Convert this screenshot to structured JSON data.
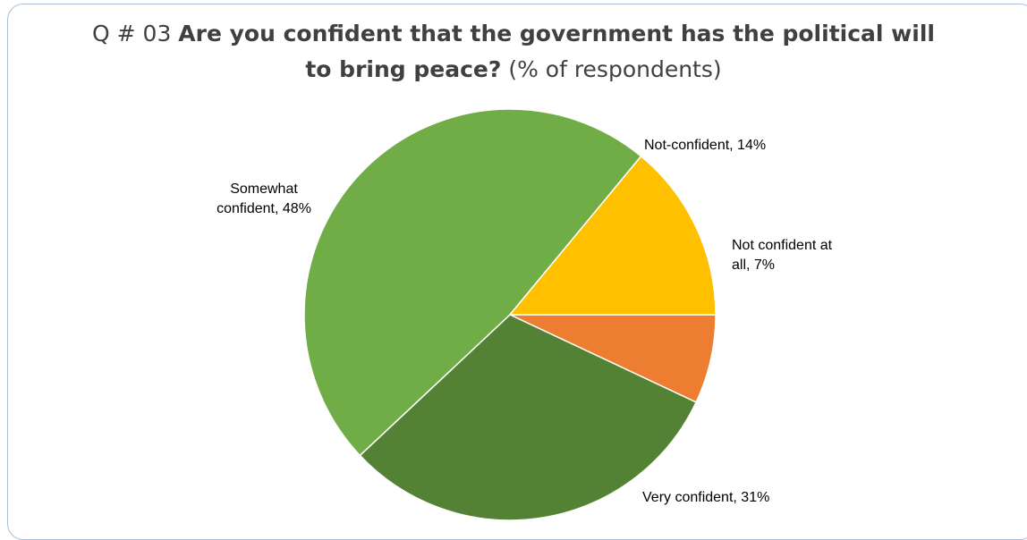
{
  "title": {
    "prefix": "Q # 03 ",
    "bold_line1": "Are you confident that the government has the political will",
    "bold_line2": "to bring peace?",
    "suffix": " (% of respondents)"
  },
  "chart_data": {
    "type": "pie",
    "title": "Q # 03 Are you confident that the government has the political will to bring peace? (% of respondents)",
    "slices": [
      {
        "name": "Not confident at all",
        "value": 7,
        "color": "#ED7D31",
        "label_lines": [
          "Not confident at",
          "all, 7%"
        ]
      },
      {
        "name": "Very confident",
        "value": 31,
        "color": "#548235",
        "label_lines": [
          "Very confident, 31%"
        ]
      },
      {
        "name": "Somewhat confident",
        "value": 48,
        "color": "#70AD47",
        "label_lines": [
          "Somewhat",
          "confident, 48%"
        ]
      },
      {
        "name": "Not-confident",
        "value": 14,
        "color": "#FFC000",
        "label_lines": [
          "Not-confident, 14%"
        ]
      }
    ],
    "start_angle_deg": 0,
    "direction": "clockwise",
    "legend": "none",
    "data_labels": "outside"
  }
}
